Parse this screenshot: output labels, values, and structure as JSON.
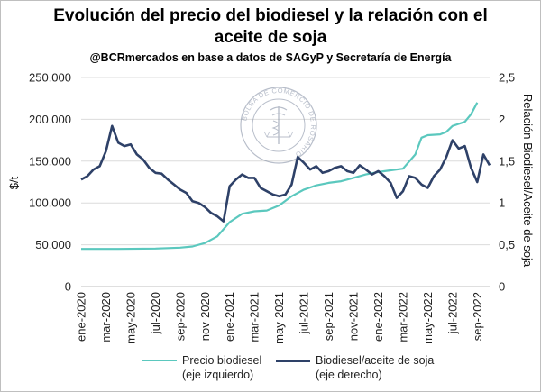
{
  "header": {
    "title": "Evolución del precio del biodiesel y la relación con el aceite de soja",
    "subtitle": "@BCRmercados en base a datos de SAGyP y Secretaría de Energía"
  },
  "logo": {
    "text": "BOLSA DE COMERCIO DE ROSARIO"
  },
  "chart_data": {
    "type": "line",
    "title": "Evolución del precio del biodiesel y la relación con el aceite de soja",
    "subtitle": "@BCRmercados en base a datos de SAGyP y Secretaría de Energía",
    "xlabel": "",
    "ylabel": "$/t",
    "y2label": "Relación Biodiesel/Aceite de soja",
    "ylim": [
      0,
      250000
    ],
    "y2lim": [
      0,
      2.5
    ],
    "yticks": [
      "0",
      "50.000",
      "100.000",
      "150.000",
      "200.000",
      "250.000"
    ],
    "y2ticks": [
      "0",
      "0,5",
      "1",
      "1,5",
      "2",
      "2,5"
    ],
    "xticks": [
      "ene-2020",
      "mar-2020",
      "may-2020",
      "jul-2020",
      "sep-2020",
      "nov-2020",
      "ene-2021",
      "mar-2021",
      "may-2021",
      "jul-2021",
      "sep-2021",
      "nov-2021",
      "ene-2022",
      "mar-2022",
      "may-2022",
      "jul-2022",
      "sep-2022"
    ],
    "xlim": [
      0,
      33
    ],
    "grid": true,
    "legend_position": "bottom",
    "series": [
      {
        "name": "Precio biodiesel\n(eje izquierdo)",
        "axis": "left",
        "color": "#5bc8be",
        "x": [
          0,
          3,
          6,
          8,
          9,
          10,
          11,
          12,
          13,
          14,
          15,
          16,
          17,
          18,
          19,
          20,
          21,
          22,
          23,
          24,
          25,
          26,
          27,
          27.5,
          28,
          29,
          29.5,
          30,
          31,
          31.5,
          32
        ],
        "values": [
          45000,
          45000,
          45500,
          46500,
          48000,
          52000,
          60000,
          77000,
          87000,
          90000,
          91000,
          97000,
          108000,
          116000,
          121000,
          124000,
          126000,
          130000,
          134000,
          137000,
          139000,
          141000,
          158000,
          178000,
          181000,
          182000,
          185000,
          192000,
          197000,
          206000,
          220000
        ]
      },
      {
        "name": "Biodiesel/aceite de soja\n(eje derecho)",
        "axis": "right",
        "color": "#2e4168",
        "x": [
          0,
          0.5,
          1,
          1.5,
          2,
          2.5,
          3,
          3.5,
          4,
          4.5,
          5,
          5.5,
          6,
          6.5,
          7,
          7.5,
          8,
          8.5,
          9,
          9.5,
          10,
          10.5,
          11,
          11.5,
          12,
          12.5,
          13,
          13.5,
          14,
          14.5,
          15,
          15.5,
          16,
          16.5,
          17,
          17.5,
          18,
          18.5,
          19,
          19.5,
          20,
          20.5,
          21,
          21.5,
          22,
          22.5,
          23,
          23.5,
          24,
          24.5,
          25,
          25.5,
          26,
          26.5,
          27,
          27.5,
          28,
          28.5,
          29,
          29.5,
          30,
          30.5,
          31,
          31.5,
          32,
          32.5,
          33
        ],
        "values": [
          1.28,
          1.32,
          1.4,
          1.44,
          1.62,
          1.92,
          1.72,
          1.68,
          1.7,
          1.58,
          1.52,
          1.42,
          1.36,
          1.35,
          1.28,
          1.22,
          1.16,
          1.12,
          1.02,
          1.0,
          0.95,
          0.88,
          0.84,
          0.78,
          1.2,
          1.28,
          1.34,
          1.3,
          1.3,
          1.18,
          1.14,
          1.1,
          1.08,
          1.1,
          1.22,
          1.55,
          1.48,
          1.4,
          1.44,
          1.36,
          1.38,
          1.42,
          1.44,
          1.38,
          1.36,
          1.45,
          1.4,
          1.34,
          1.38,
          1.32,
          1.24,
          1.06,
          1.14,
          1.32,
          1.3,
          1.22,
          1.18,
          1.32,
          1.4,
          1.55,
          1.75,
          1.65,
          1.68,
          1.42,
          1.25,
          1.58,
          1.45
        ]
      }
    ]
  }
}
